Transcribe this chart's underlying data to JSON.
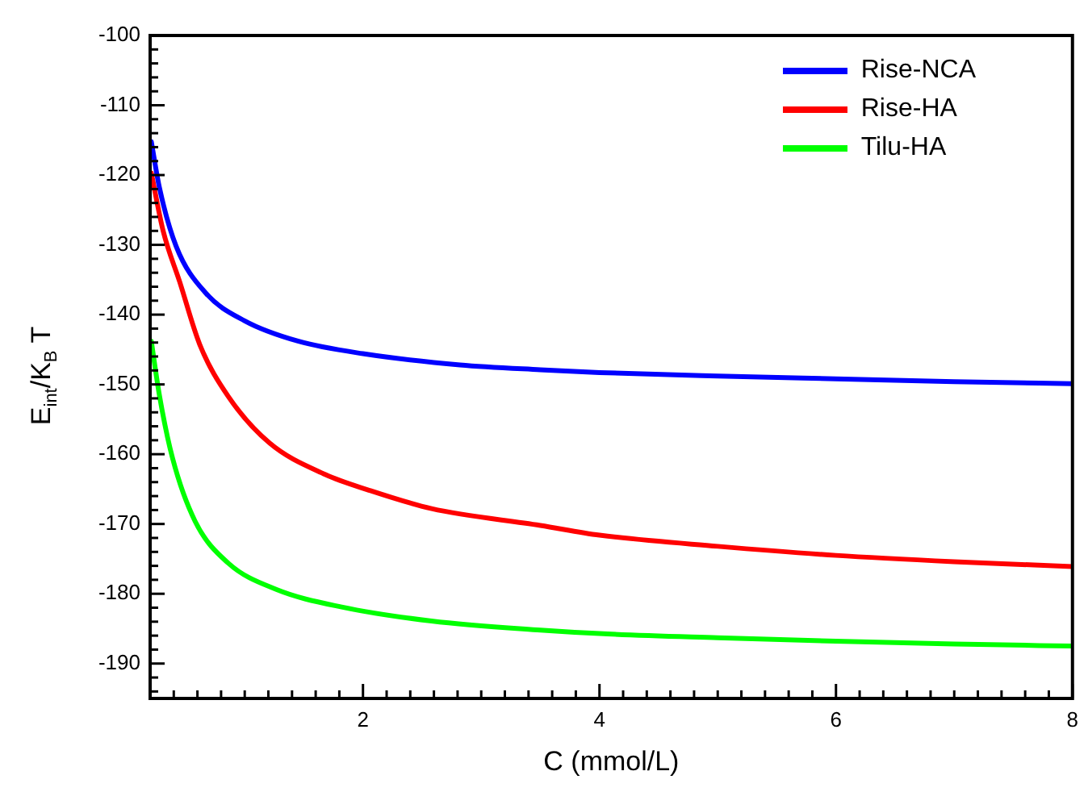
{
  "chart_data": {
    "type": "line",
    "xlabel": "C (mmol/L)",
    "ylabel": "E$_{int}$/K$_{B}$ T",
    "xlim": [
      0.2,
      8
    ],
    "xticks": [
      {
        "value": 0.4,
        "label": null
      },
      {
        "value": 0.6,
        "label": null
      },
      {
        "value": 0.8,
        "label": null
      },
      {
        "value": 1,
        "label": null
      },
      {
        "value": 1.2,
        "label": null
      },
      {
        "value": 1.4,
        "label": null
      },
      {
        "value": 1.6,
        "label": null
      },
      {
        "value": 1.8,
        "label": null
      },
      2,
      {
        "value": 2.2,
        "label": null
      },
      {
        "value": 2.4,
        "label": null
      },
      {
        "value": 2.6,
        "label": null
      },
      {
        "value": 2.8,
        "label": null
      },
      {
        "value": 3,
        "label": null
      },
      {
        "value": 3.2,
        "label": null
      },
      {
        "value": 3.4,
        "label": null
      },
      {
        "value": 3.6,
        "label": null
      },
      {
        "value": 3.8,
        "label": null
      },
      4,
      {
        "value": 4.2,
        "label": null
      },
      {
        "value": 4.4,
        "label": null
      },
      {
        "value": 4.6,
        "label": null
      },
      {
        "value": 4.8,
        "label": null
      },
      {
        "value": 5,
        "label": null
      },
      {
        "value": 5.2,
        "label": null
      },
      {
        "value": 5.4,
        "label": null
      },
      {
        "value": 5.6,
        "label": null
      },
      {
        "value": 5.8,
        "label": null
      },
      6,
      {
        "value": 6.2,
        "label": null
      },
      {
        "value": 6.4,
        "label": null
      },
      {
        "value": 6.6,
        "label": null
      },
      {
        "value": 6.8,
        "label": null
      },
      {
        "value": 7,
        "label": null
      },
      {
        "value": 7.2,
        "label": null
      },
      {
        "value": 7.4,
        "label": null
      },
      {
        "value": 7.6,
        "label": null
      },
      {
        "value": 7.8,
        "label": null
      },
      8
    ],
    "ylim": [
      -195,
      -100
    ],
    "yticks": [
      {
        "value": -194,
        "label": null
      },
      {
        "value": -192,
        "label": null
      },
      -190,
      {
        "value": -188,
        "label": null
      },
      {
        "value": -186,
        "label": null
      },
      {
        "value": -184,
        "label": null
      },
      {
        "value": -182,
        "label": null
      },
      -180,
      {
        "value": -178,
        "label": null
      },
      {
        "value": -176,
        "label": null
      },
      {
        "value": -174,
        "label": null
      },
      {
        "value": -172,
        "label": null
      },
      -170,
      {
        "value": -168,
        "label": null
      },
      {
        "value": -166,
        "label": null
      },
      {
        "value": -164,
        "label": null
      },
      {
        "value": -162,
        "label": null
      },
      -160,
      {
        "value": -158,
        "label": null
      },
      {
        "value": -156,
        "label": null
      },
      {
        "value": -154,
        "label": null
      },
      {
        "value": -152,
        "label": null
      },
      -150,
      {
        "value": -148,
        "label": null
      },
      {
        "value": -146,
        "label": null
      },
      {
        "value": -144,
        "label": null
      },
      {
        "value": -142,
        "label": null
      },
      -140,
      {
        "value": -138,
        "label": null
      },
      {
        "value": -136,
        "label": null
      },
      {
        "value": -134,
        "label": null
      },
      {
        "value": -132,
        "label": null
      },
      -130,
      {
        "value": -128,
        "label": null
      },
      {
        "value": -126,
        "label": null
      },
      {
        "value": -124,
        "label": null
      },
      {
        "value": -122,
        "label": null
      },
      -120,
      {
        "value": -118,
        "label": null
      },
      {
        "value": -116,
        "label": null
      },
      {
        "value": -114,
        "label": null
      },
      {
        "value": -112,
        "label": null
      },
      -110,
      {
        "value": -108,
        "label": null
      },
      {
        "value": -106,
        "label": null
      },
      {
        "value": -104,
        "label": null
      },
      {
        "value": -102,
        "label": null
      },
      -100
    ],
    "grid": false,
    "legend": "top right",
    "marker": "none",
    "line_style": "solid",
    "series": [
      {
        "name": "Rise-NCA",
        "color": "#0000ff",
        "x": [
          0.21,
          0.28,
          0.42,
          0.67,
          1.0,
          1.45,
          2.0,
          2.82,
          3.5,
          4,
          5,
          6,
          7,
          8
        ],
        "values": [
          -115.2,
          -121.9,
          -130.2,
          -136.9,
          -140.9,
          -143.8,
          -145.6,
          -147.2,
          -147.9,
          -148.3,
          -148.8,
          -149.2,
          -149.6,
          -149.9
        ]
      },
      {
        "name": "Rise-HA",
        "color": "#ff0000",
        "x": [
          0.21,
          0.31,
          0.45,
          0.62,
          0.86,
          1.21,
          1.68,
          2.04,
          2.58,
          3.5,
          4,
          5,
          6,
          7,
          8
        ],
        "values": [
          -119.7,
          -128,
          -135.3,
          -144.3,
          -151.7,
          -158.4,
          -162.9,
          -165.1,
          -167.8,
          -170.2,
          -171.6,
          -173.2,
          -174.5,
          -175.4,
          -176.1
        ]
      },
      {
        "name": "Tilu-HA",
        "color": "#00ff00",
        "x": [
          0.21,
          0.28,
          0.39,
          0.58,
          0.86,
          1.27,
          1.82,
          2.58,
          3.5,
          4,
          5,
          6,
          7,
          8
        ],
        "values": [
          -143.8,
          -151.7,
          -160.6,
          -169.6,
          -175.6,
          -179.4,
          -181.9,
          -183.9,
          -185.2,
          -185.7,
          -186.3,
          -186.8,
          -187.2,
          -187.5
        ]
      }
    ]
  }
}
